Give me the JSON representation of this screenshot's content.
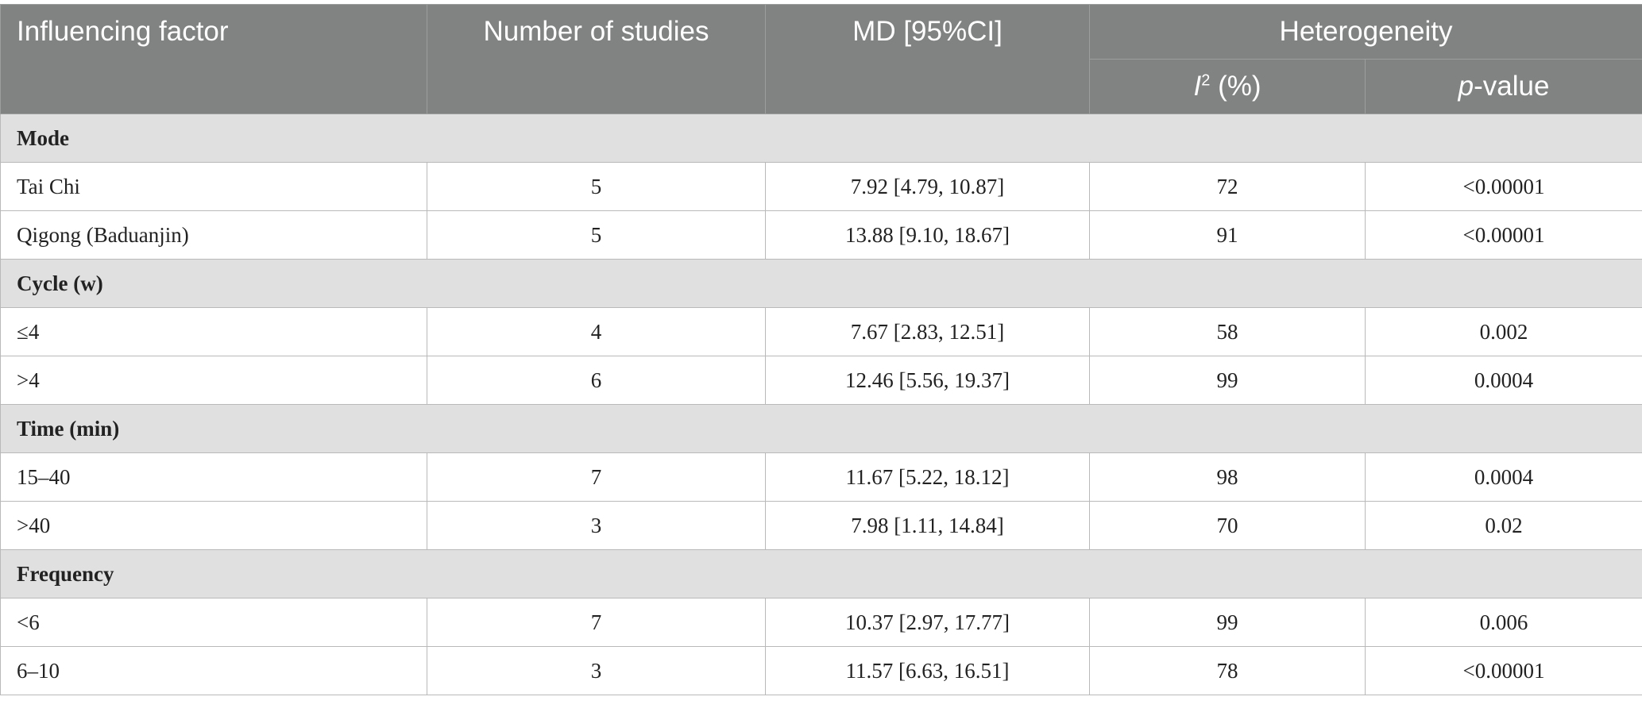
{
  "table": {
    "headers": {
      "factor": "Influencing factor",
      "studies": "Number of studies",
      "md": "MD [95%CI]",
      "heterogeneity": "Heterogeneity",
      "i2_letter": "I",
      "i2_sup": "2",
      "i2_unit": " (%)",
      "p_letter": "p",
      "p_rest": "-value"
    },
    "groups": [
      {
        "name": "Mode",
        "rows": [
          {
            "factor": "Tai Chi",
            "studies": "5",
            "md": "7.92 [4.79, 10.87]",
            "i2": "72",
            "p": "<0.00001"
          },
          {
            "factor": "Qigong (Baduanjin)",
            "studies": "5",
            "md": "13.88 [9.10, 18.67]",
            "i2": "91",
            "p": "<0.00001"
          }
        ]
      },
      {
        "name": "Cycle (w)",
        "rows": [
          {
            "factor": "≤4",
            "studies": "4",
            "md": "7.67 [2.83, 12.51]",
            "i2": "58",
            "p": "0.002"
          },
          {
            "factor": ">4",
            "studies": "6",
            "md": "12.46 [5.56, 19.37]",
            "i2": "99",
            "p": "0.0004"
          }
        ]
      },
      {
        "name": "Time (min)",
        "rows": [
          {
            "factor": "15–40",
            "studies": "7",
            "md": "11.67 [5.22, 18.12]",
            "i2": "98",
            "p": "0.0004"
          },
          {
            "factor": ">40",
            "studies": "3",
            "md": "7.98 [1.11, 14.84]",
            "i2": "70",
            "p": "0.02"
          }
        ]
      },
      {
        "name": "Frequency",
        "rows": [
          {
            "factor": "<6",
            "studies": "7",
            "md": "10.37 [2.97, 17.77]",
            "i2": "99",
            "p": "0.006"
          },
          {
            "factor": "6–10",
            "studies": "3",
            "md": "11.57 [6.63, 16.51]",
            "i2": "78",
            "p": "<0.00001"
          }
        ]
      }
    ]
  }
}
